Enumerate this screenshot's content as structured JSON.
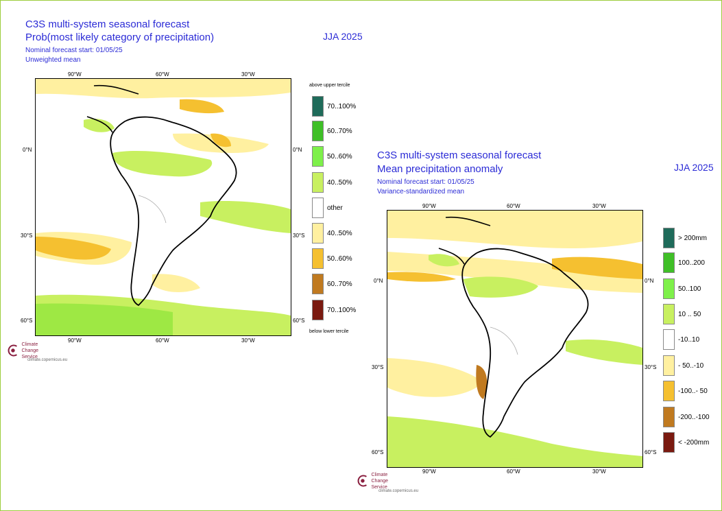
{
  "left": {
    "title1": "C3S multi-system seasonal forecast",
    "title2": "Prob(most likely category of precipitation)",
    "season": "JJA 2025",
    "start": "Nominal forecast start: 01/05/25",
    "method": "Unweighted mean",
    "lon_labels": [
      "90°W",
      "60°W",
      "30°W"
    ],
    "lat_labels": [
      "0°N",
      "30°S",
      "60°S"
    ],
    "legend_top": "above upper tercile",
    "legend_bottom": "below lower tercile",
    "legend": [
      {
        "label": "70..100%",
        "color": "#1f6b5a"
      },
      {
        "label": "60..70%",
        "color": "#3fbf27"
      },
      {
        "label": "50..60%",
        "color": "#7ef04a"
      },
      {
        "label": "40..50%",
        "color": "#c8f060"
      },
      {
        "label": "other",
        "color": "#ffffff"
      },
      {
        "label": "40..50%",
        "color": "#fff0a0"
      },
      {
        "label": "50..60%",
        "color": "#f5c030"
      },
      {
        "label": "60..70%",
        "color": "#c07a20"
      },
      {
        "label": "70..100%",
        "color": "#7a1a10"
      }
    ]
  },
  "right": {
    "title1": "C3S multi-system seasonal forecast",
    "title2": "Mean precipitation anomaly",
    "season": "JJA 2025",
    "start": "Nominal forecast start: 01/05/25",
    "method": "Variance-standardized mean",
    "lon_labels": [
      "90°W",
      "60°W",
      "30°W"
    ],
    "lat_labels": [
      "0°N",
      "30°S",
      "60°S"
    ],
    "legend": [
      {
        "label": "> 200mm",
        "color": "#1f6b5a"
      },
      {
        "label": "100..200",
        "color": "#3fbf27"
      },
      {
        "label": "50..100",
        "color": "#7ef04a"
      },
      {
        "label": "10 .. 50",
        "color": "#c8f060"
      },
      {
        "label": "-10..10",
        "color": "#ffffff"
      },
      {
        "label": "- 50..-10",
        "color": "#fff0a0"
      },
      {
        "label": "-100..- 50",
        "color": "#f5c030"
      },
      {
        "label": "-200..-100",
        "color": "#c07a20"
      },
      {
        "label": "< -200mm",
        "color": "#7a1a10"
      }
    ]
  },
  "logo": {
    "line1": "Climate",
    "line2": "Change Service",
    "url": "climate.copernicus.eu"
  }
}
